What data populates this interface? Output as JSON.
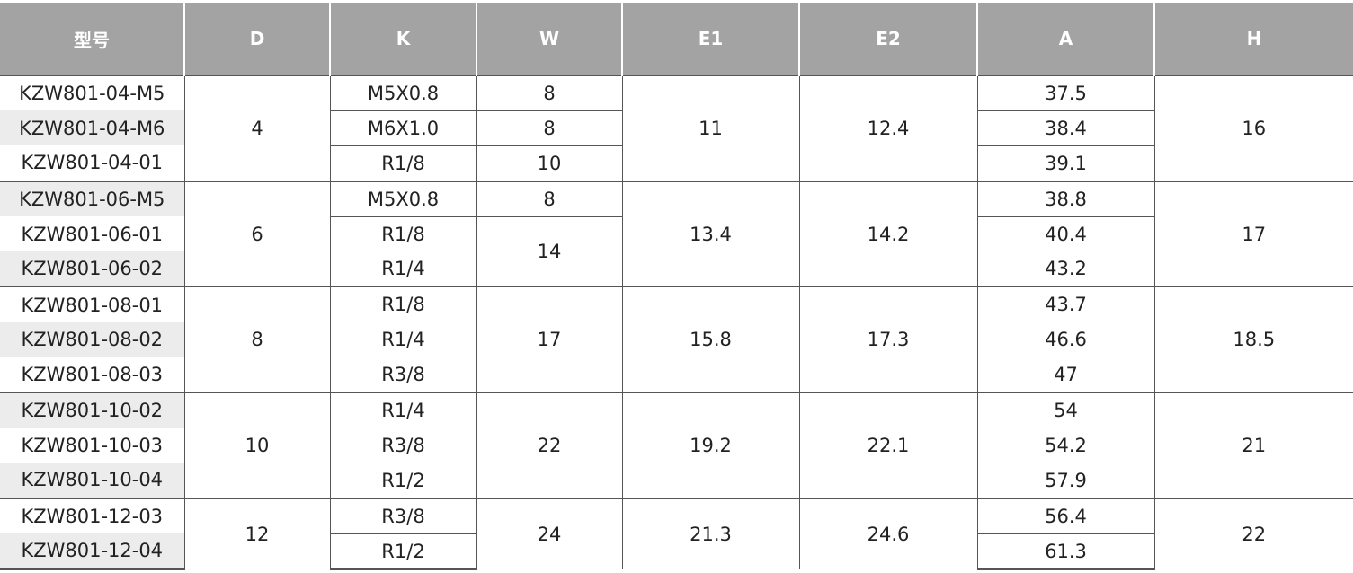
{
  "table": {
    "header": [
      "型号",
      "D",
      "K",
      "W",
      "E1",
      "E2",
      "A",
      "H"
    ],
    "groups": [
      {
        "D": 4,
        "E1": 11,
        "E2": 12.4,
        "H": 16,
        "rows": [
          [
            "KZW801-04-M5",
            "M5X0.8",
            8,
            37.5
          ],
          [
            "KZW801-04-M6",
            "M6X1.0",
            8,
            38.4
          ],
          [
            "KZW801-04-01",
            "R1/8",
            10,
            39.1
          ]
        ]
      },
      {
        "D": 6,
        "E1": 13.4,
        "E2": 14.2,
        "H": 17,
        "rows": [
          [
            "KZW801-06-M5",
            "M5X0.8",
            8,
            38.8
          ],
          [
            "KZW801-06-01",
            "R1/8",
            14,
            40.4
          ],
          [
            "KZW801-06-02",
            "R1/4",
            null,
            43.2
          ]
        ]
      },
      {
        "D": 8,
        "E1": 15.8,
        "E2": 17.3,
        "H": 18.5,
        "rows": [
          [
            "KZW801-08-01",
            "R1/8",
            17,
            43.7
          ],
          [
            "KZW801-08-02",
            "R1/4",
            null,
            46.6
          ],
          [
            "KZW801-08-03",
            "R3/8",
            null,
            47
          ]
        ]
      },
      {
        "D": 10,
        "E1": 19.2,
        "E2": 22.1,
        "H": 21,
        "rows": [
          [
            "KZW801-10-02",
            "R1/4",
            22,
            54
          ],
          [
            "KZW801-10-03",
            "R3/8",
            null,
            54.2
          ],
          [
            "KZW801-10-04",
            "R1/2",
            null,
            57.9
          ]
        ]
      },
      {
        "D": 12,
        "E1": 21.3,
        "E2": 24.6,
        "H": 22,
        "rows": [
          [
            "KZW801-12-03",
            "R3/8",
            24,
            56.4
          ],
          [
            "KZW801-12-04",
            "R1/2",
            null,
            61.3
          ]
        ]
      }
    ]
  }
}
